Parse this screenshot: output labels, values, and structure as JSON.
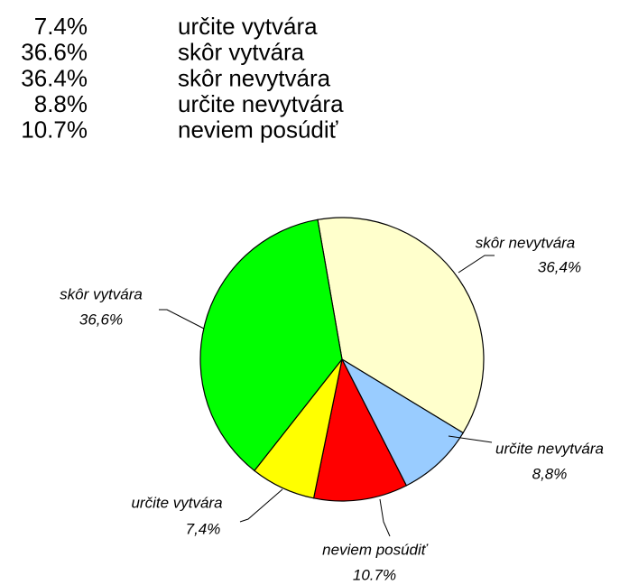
{
  "chart_data": {
    "type": "pie",
    "table": {
      "rows": [
        [
          "7.4%",
          "určite vytvára"
        ],
        [
          "36.6%",
          "skôr vytvára"
        ],
        [
          "36.4%",
          "skôr nevytvára"
        ],
        [
          "8.8%",
          "určite nevytvára"
        ],
        [
          "10.7%",
          "neviem posúdiť"
        ]
      ]
    },
    "categories": [
      "skôr nevytvára",
      "určite nevytvára",
      "neviem posúdiť",
      "určite vytvára",
      "skôr vytvára"
    ],
    "values": [
      36.4,
      8.8,
      10.7,
      7.4,
      36.6
    ],
    "value_labels": [
      "36,4%",
      "8,8%",
      "10.7%",
      "7,4%",
      "36,6%"
    ],
    "colors": [
      "#ffffcc",
      "#99ccff",
      "#ff0000",
      "#ffff00",
      "#00ff00"
    ],
    "start_angle": -9.9,
    "direction": "clockwise"
  }
}
